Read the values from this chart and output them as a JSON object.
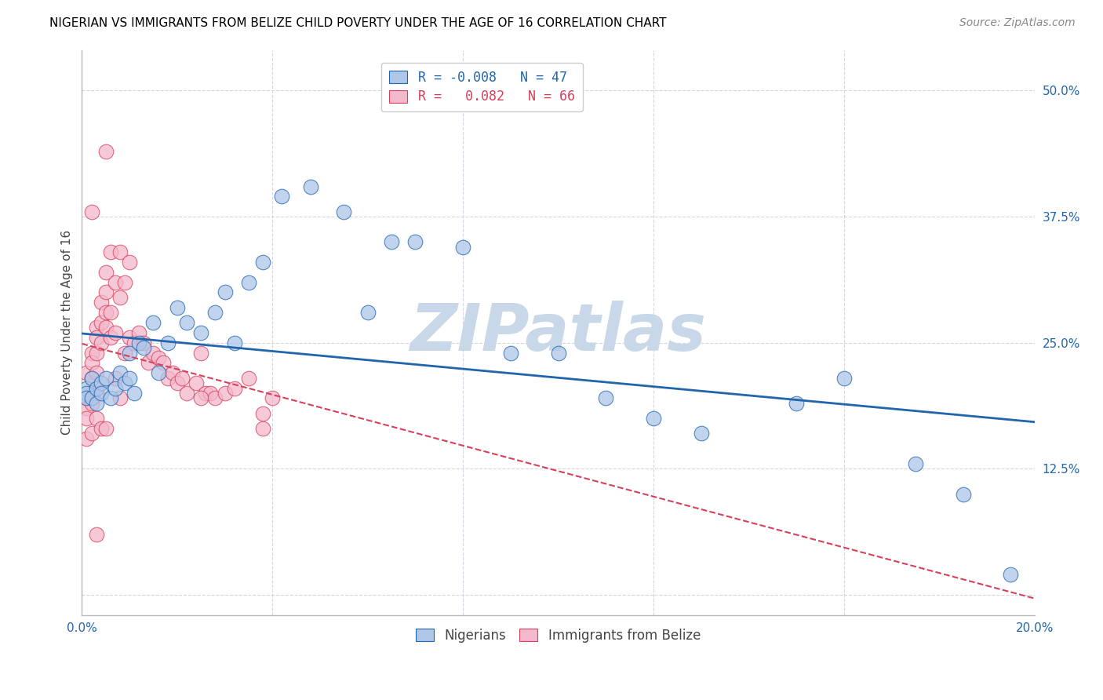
{
  "title": "NIGERIAN VS IMMIGRANTS FROM BELIZE CHILD POVERTY UNDER THE AGE OF 16 CORRELATION CHART",
  "source": "Source: ZipAtlas.com",
  "ylabel": "Child Poverty Under the Age of 16",
  "xlim": [
    0.0,
    0.2
  ],
  "ylim": [
    -0.02,
    0.54
  ],
  "xticks": [
    0.0,
    0.04,
    0.08,
    0.12,
    0.16,
    0.2
  ],
  "xticklabels": [
    "0.0%",
    "",
    "",
    "",
    "",
    "20.0%"
  ],
  "yticks": [
    0.0,
    0.125,
    0.25,
    0.375,
    0.5
  ],
  "yticklabels": [
    "",
    "12.5%",
    "25.0%",
    "37.5%",
    "50.0%"
  ],
  "nigerians_x": [
    0.001,
    0.001,
    0.001,
    0.002,
    0.002,
    0.003,
    0.003,
    0.004,
    0.004,
    0.005,
    0.006,
    0.007,
    0.008,
    0.009,
    0.01,
    0.01,
    0.011,
    0.012,
    0.013,
    0.015,
    0.016,
    0.018,
    0.02,
    0.022,
    0.025,
    0.028,
    0.03,
    0.032,
    0.035,
    0.038,
    0.042,
    0.048,
    0.055,
    0.06,
    0.065,
    0.07,
    0.08,
    0.09,
    0.1,
    0.11,
    0.12,
    0.13,
    0.15,
    0.16,
    0.175,
    0.185,
    0.195
  ],
  "nigerians_y": [
    0.205,
    0.2,
    0.195,
    0.215,
    0.195,
    0.205,
    0.19,
    0.21,
    0.2,
    0.215,
    0.195,
    0.205,
    0.22,
    0.21,
    0.24,
    0.215,
    0.2,
    0.25,
    0.245,
    0.27,
    0.22,
    0.25,
    0.285,
    0.27,
    0.26,
    0.28,
    0.3,
    0.25,
    0.31,
    0.33,
    0.395,
    0.405,
    0.38,
    0.28,
    0.35,
    0.35,
    0.345,
    0.24,
    0.24,
    0.195,
    0.175,
    0.16,
    0.19,
    0.215,
    0.13,
    0.1,
    0.02
  ],
  "belize_x": [
    0.001,
    0.001,
    0.001,
    0.001,
    0.001,
    0.002,
    0.002,
    0.002,
    0.002,
    0.002,
    0.002,
    0.003,
    0.003,
    0.003,
    0.003,
    0.003,
    0.003,
    0.004,
    0.004,
    0.004,
    0.004,
    0.005,
    0.005,
    0.005,
    0.005,
    0.005,
    0.006,
    0.006,
    0.006,
    0.007,
    0.007,
    0.007,
    0.008,
    0.008,
    0.008,
    0.009,
    0.009,
    0.01,
    0.01,
    0.011,
    0.012,
    0.013,
    0.014,
    0.015,
    0.016,
    0.017,
    0.018,
    0.019,
    0.02,
    0.021,
    0.022,
    0.024,
    0.025,
    0.026,
    0.027,
    0.028,
    0.03,
    0.032,
    0.035,
    0.038,
    0.005,
    0.002,
    0.04,
    0.038,
    0.025,
    0.003
  ],
  "belize_y": [
    0.22,
    0.195,
    0.185,
    0.175,
    0.155,
    0.24,
    0.23,
    0.215,
    0.2,
    0.19,
    0.16,
    0.265,
    0.255,
    0.24,
    0.22,
    0.2,
    0.175,
    0.29,
    0.27,
    0.25,
    0.165,
    0.32,
    0.3,
    0.28,
    0.265,
    0.165,
    0.34,
    0.28,
    0.255,
    0.31,
    0.26,
    0.215,
    0.34,
    0.295,
    0.195,
    0.31,
    0.24,
    0.33,
    0.255,
    0.25,
    0.26,
    0.25,
    0.23,
    0.24,
    0.235,
    0.23,
    0.215,
    0.22,
    0.21,
    0.215,
    0.2,
    0.21,
    0.24,
    0.2,
    0.2,
    0.195,
    0.2,
    0.205,
    0.215,
    0.165,
    0.44,
    0.38,
    0.195,
    0.18,
    0.195,
    0.06
  ],
  "nigerian_fill": "#aec6e8",
  "nigerian_edge": "#2166ac",
  "belize_fill": "#f4b8cc",
  "belize_edge": "#d6405a",
  "nigerian_line_color": "#2166ac",
  "belize_line_color": "#d6405a",
  "watermark_text": "ZIPatlas",
  "watermark_color": "#c8d8e8",
  "title_fontsize": 11,
  "tick_fontsize": 11,
  "source_fontsize": 10,
  "ylabel_fontsize": 11
}
